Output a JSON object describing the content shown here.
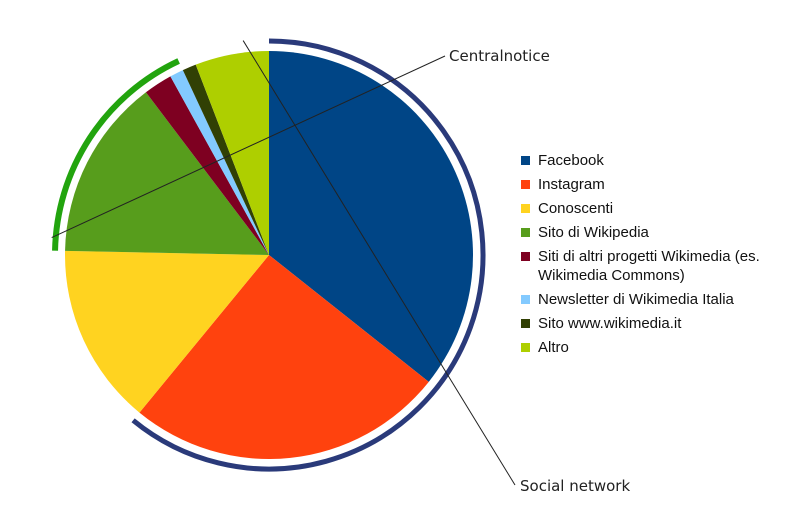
{
  "chart_data": {
    "type": "pie",
    "title": "",
    "slices": [
      {
        "label": "Facebook",
        "value": 36.0,
        "color": "#004586"
      },
      {
        "label": "Instagram",
        "value": 25.5,
        "color": "#ff420e"
      },
      {
        "label": "Conoscenti",
        "value": 14.5,
        "color": "#ffd320"
      },
      {
        "label": "Sito di Wikipedia",
        "value": 14.5,
        "color": "#579d1c"
      },
      {
        "label": "Siti di altri progetti Wikimedia (es. Wikimedia Commons)",
        "value": 2.3,
        "color": "#7e0021"
      },
      {
        "label": "Newsletter di Wikimedia Italia",
        "value": 1.1,
        "color": "#83caff"
      },
      {
        "label": "Sito www.wikimedia.it",
        "value": 1.1,
        "color": "#314004"
      },
      {
        "label": "Altro",
        "value": 5.9,
        "color": "#aecf00"
      }
    ],
    "legend_position": "right",
    "groups": [
      {
        "label": "Social network",
        "members": [
          "Facebook",
          "Instagram"
        ],
        "color": "#2a3a7a"
      },
      {
        "label": "Centralnotice",
        "members": [
          "Sito di Wikipedia",
          "Siti di altri progetti Wikimedia (es. Wikimedia Commons)",
          "Newsletter di Wikimedia Italia"
        ],
        "color": "#22a40e"
      }
    ]
  }
}
